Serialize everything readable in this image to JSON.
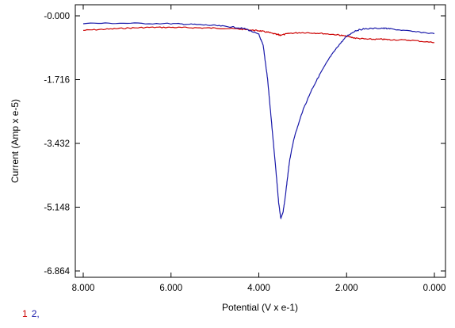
{
  "chart_data": {
    "type": "line",
    "title": "",
    "xlabel": "Potential (V x e-1)",
    "ylabel": "Current (Amp x e-5)",
    "xlim": [
      8.0,
      0.0
    ],
    "ylim": [
      -6.864,
      0.0
    ],
    "x_reversed": true,
    "xticks": [
      "8.000",
      "6.000",
      "4.000",
      "2.000",
      "0.000"
    ],
    "yticks": [
      "-0.000",
      "-1.716",
      "-3.432",
      "-5.148",
      "-6.864"
    ],
    "grid": false,
    "series": [
      {
        "name": "1",
        "color": "#cc0000",
        "x": [
          8.0,
          7.5,
          7.0,
          6.5,
          6.0,
          5.5,
          5.0,
          4.5,
          4.2,
          4.0,
          3.8,
          3.6,
          3.5,
          3.3,
          3.0,
          2.6,
          2.2,
          2.0,
          1.8,
          1.5,
          1.2,
          1.0,
          0.5,
          0.0
        ],
        "y": [
          -0.39,
          -0.36,
          -0.33,
          -0.31,
          -0.31,
          -0.32,
          -0.33,
          -0.35,
          -0.38,
          -0.4,
          -0.44,
          -0.5,
          -0.52,
          -0.47,
          -0.45,
          -0.47,
          -0.51,
          -0.55,
          -0.6,
          -0.63,
          -0.63,
          -0.64,
          -0.66,
          -0.72
        ]
      },
      {
        "name": "2",
        "color": "#1a1aaa",
        "x": [
          8.0,
          7.0,
          6.0,
          5.5,
          5.0,
          4.6,
          4.3,
          4.0,
          3.9,
          3.8,
          3.7,
          3.6,
          3.55,
          3.5,
          3.45,
          3.4,
          3.35,
          3.3,
          3.2,
          3.0,
          2.8,
          2.6,
          2.4,
          2.2,
          2.0,
          1.8,
          1.6,
          1.2,
          1.0,
          0.5,
          0.0
        ],
        "y": [
          -0.2,
          -0.2,
          -0.21,
          -0.23,
          -0.26,
          -0.3,
          -0.35,
          -0.5,
          -0.8,
          -1.7,
          -3.0,
          -4.3,
          -5.0,
          -5.45,
          -5.3,
          -4.9,
          -4.4,
          -3.9,
          -3.3,
          -2.55,
          -2.0,
          -1.55,
          -1.15,
          -0.82,
          -0.55,
          -0.4,
          -0.35,
          -0.33,
          -0.35,
          -0.42,
          -0.48
        ]
      }
    ],
    "legend": {
      "placement": "bottom-left",
      "entries": [
        "1",
        "2,"
      ]
    }
  }
}
